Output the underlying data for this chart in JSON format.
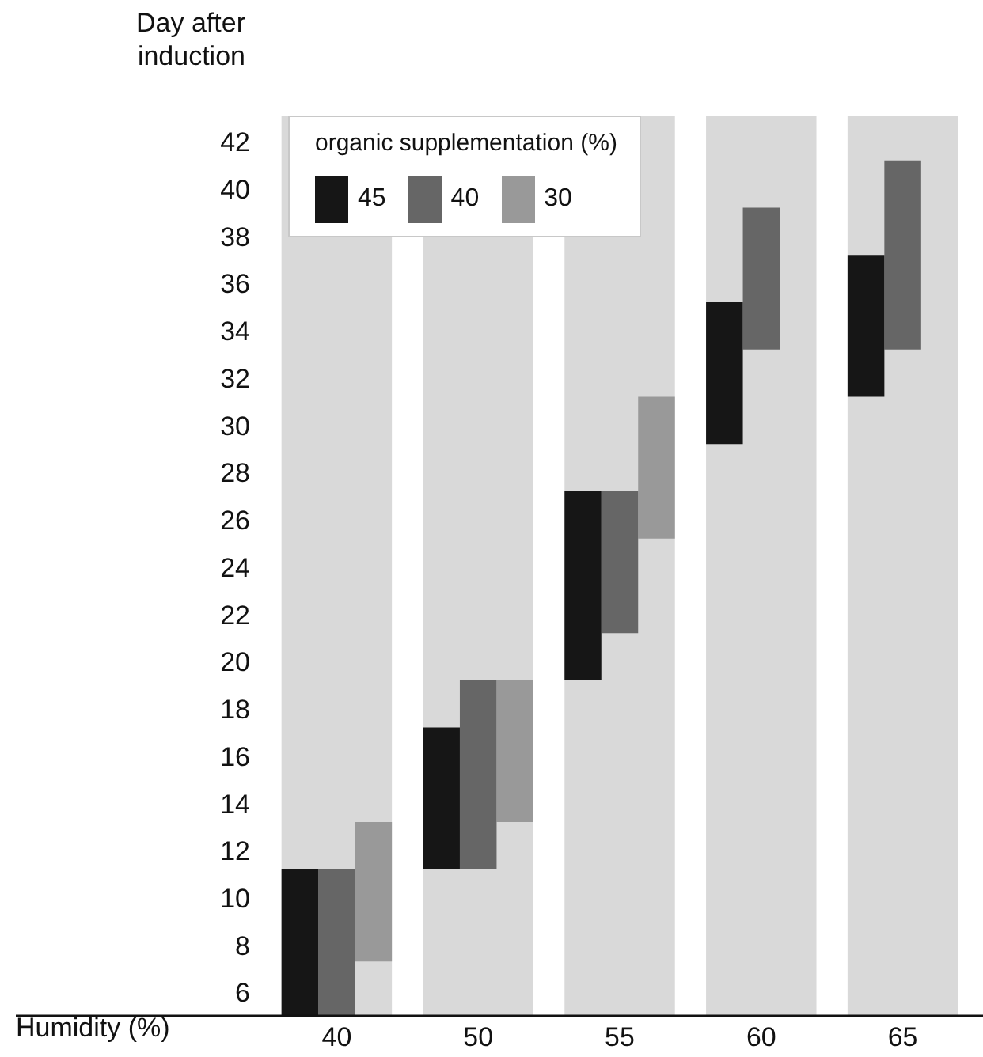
{
  "chart_data": {
    "type": "bar",
    "xlabel": "Humidity (%)",
    "ylabel": "Day after induction",
    "legend_title": "organic supplementation (%)",
    "categories": [
      "40",
      "50",
      "55",
      "60",
      "65"
    ],
    "series": [
      {
        "name": "45",
        "color": "#161616",
        "base": [
          5.1,
          11.3,
          19.3,
          29.3,
          31.3
        ],
        "values": [
          6.2,
          6,
          8,
          6,
          6
        ]
      },
      {
        "name": "40",
        "color": "#666666",
        "base": [
          5.1,
          11.3,
          21.3,
          33.3,
          33.3
        ],
        "values": [
          6.2,
          8,
          6,
          6,
          8
        ]
      },
      {
        "name": "30",
        "color": "#999999",
        "base": [
          7.4,
          13.3,
          25.3,
          null,
          null
        ],
        "values": [
          5.9,
          6,
          6,
          null,
          null
        ]
      }
    ],
    "ylim": [
      5.1,
      43.2
    ],
    "yticks": [
      6,
      8,
      10,
      12,
      14,
      16,
      18,
      20,
      22,
      24,
      26,
      28,
      30,
      32,
      34,
      36,
      38,
      40,
      42
    ],
    "bands": [
      {
        "axis": "x",
        "from": "40",
        "to": "40",
        "color": "#d9d9d9"
      },
      {
        "axis": "x",
        "from": "50",
        "to": "50",
        "color": "#d9d9d9"
      },
      {
        "axis": "x",
        "from": "55",
        "to": "55",
        "color": "#d9d9d9"
      },
      {
        "axis": "x",
        "from": "60",
        "to": "60",
        "color": "#d9d9d9"
      },
      {
        "axis": "x",
        "from": "65",
        "to": "65",
        "color": "#d9d9d9"
      }
    ],
    "legend": "top left",
    "grid": false
  }
}
